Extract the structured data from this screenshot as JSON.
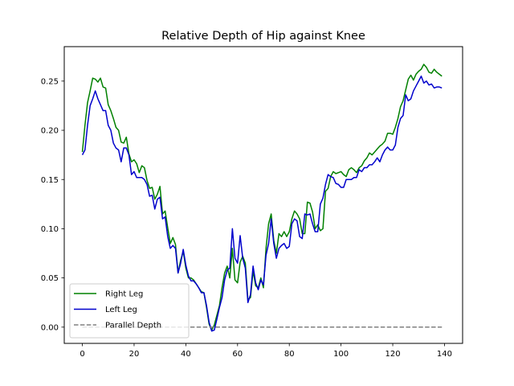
{
  "chart_data": {
    "type": "line",
    "title": "Relative Depth of Hip against Knee",
    "xlabel": "",
    "ylabel": "",
    "xlim": [
      -7,
      147
    ],
    "ylim": [
      -0.0165,
      0.285
    ],
    "x_ticks": [
      0,
      20,
      40,
      60,
      80,
      100,
      120,
      140
    ],
    "y_ticks": [
      0.0,
      0.05,
      0.1,
      0.15,
      0.2,
      0.25
    ],
    "x_tick_labels": [
      "0",
      "20",
      "40",
      "60",
      "80",
      "100",
      "120",
      "140"
    ],
    "y_tick_labels": [
      "0.00",
      "0.05",
      "0.10",
      "0.15",
      "0.20",
      "0.25"
    ],
    "grid": false,
    "legend_position": "lower-left",
    "colors": {
      "right": "#008000",
      "left": "#0000cc",
      "parallel": "#808080"
    },
    "series": [
      {
        "name": "Right Leg",
        "color": "#008000",
        "dash": "solid",
        "x": [
          0,
          1,
          2,
          3,
          4,
          5,
          6,
          7,
          8,
          9,
          10,
          11,
          12,
          13,
          14,
          15,
          16,
          17,
          18,
          19,
          20,
          21,
          22,
          23,
          24,
          25,
          26,
          27,
          28,
          29,
          30,
          31,
          32,
          33,
          34,
          35,
          36,
          37,
          38,
          39,
          40,
          41,
          42,
          43,
          44,
          45,
          46,
          47,
          48,
          49,
          50,
          51,
          52,
          53,
          54,
          55,
          56,
          57,
          58,
          59,
          60,
          61,
          62,
          63,
          64,
          65,
          66,
          67,
          68,
          69,
          70,
          71,
          72,
          73,
          74,
          75,
          76,
          77,
          78,
          79,
          80,
          81,
          82,
          83,
          84,
          85,
          86,
          87,
          88,
          89,
          90,
          91,
          92,
          93,
          94,
          95,
          96,
          97,
          98,
          99,
          100,
          101,
          102,
          103,
          104,
          105,
          106,
          107,
          108,
          109,
          110,
          111,
          112,
          113,
          114,
          115,
          116,
          117,
          118,
          119,
          120,
          121,
          122,
          123,
          124,
          125,
          126,
          127,
          128,
          129,
          130,
          131,
          132,
          133,
          134,
          135,
          136,
          137,
          138,
          139
        ],
        "values": [
          0.178,
          0.205,
          0.228,
          0.24,
          0.253,
          0.252,
          0.249,
          0.253,
          0.244,
          0.243,
          0.226,
          0.22,
          0.212,
          0.203,
          0.2,
          0.188,
          0.187,
          0.193,
          0.176,
          0.168,
          0.17,
          0.166,
          0.157,
          0.164,
          0.162,
          0.149,
          0.141,
          0.142,
          0.13,
          0.135,
          0.143,
          0.115,
          0.118,
          0.101,
          0.085,
          0.091,
          0.084,
          0.055,
          0.068,
          0.077,
          0.06,
          0.05,
          0.05,
          0.048,
          0.044,
          0.04,
          0.036,
          0.035,
          0.02,
          0.003,
          -0.003,
          0.002,
          0.012,
          0.022,
          0.04,
          0.055,
          0.062,
          0.05,
          0.08,
          0.048,
          0.045,
          0.066,
          0.072,
          0.065,
          0.028,
          0.03,
          0.057,
          0.042,
          0.04,
          0.05,
          0.04,
          0.08,
          0.105,
          0.115,
          0.088,
          0.075,
          0.095,
          0.092,
          0.097,
          0.092,
          0.097,
          0.11,
          0.118,
          0.115,
          0.11,
          0.095,
          0.095,
          0.127,
          0.126,
          0.117,
          0.1,
          0.104,
          0.098,
          0.1,
          0.138,
          0.141,
          0.153,
          0.158,
          0.156,
          0.157,
          0.158,
          0.155,
          0.153,
          0.16,
          0.162,
          0.16,
          0.157,
          0.162,
          0.164,
          0.169,
          0.172,
          0.177,
          0.175,
          0.178,
          0.181,
          0.184,
          0.186,
          0.189,
          0.197,
          0.197,
          0.196,
          0.203,
          0.212,
          0.224,
          0.23,
          0.241,
          0.252,
          0.256,
          0.251,
          0.257,
          0.26,
          0.262,
          0.267,
          0.264,
          0.259,
          0.258,
          0.262,
          0.259,
          0.257,
          0.255
        ]
      },
      {
        "name": "Left Leg",
        "color": "#0000cc",
        "dash": "solid",
        "x": [
          0,
          1,
          2,
          3,
          4,
          5,
          6,
          7,
          8,
          9,
          10,
          11,
          12,
          13,
          14,
          15,
          16,
          17,
          18,
          19,
          20,
          21,
          22,
          23,
          24,
          25,
          26,
          27,
          28,
          29,
          30,
          31,
          32,
          33,
          34,
          35,
          36,
          37,
          38,
          39,
          40,
          41,
          42,
          43,
          44,
          45,
          46,
          47,
          48,
          49,
          50,
          51,
          52,
          53,
          54,
          55,
          56,
          57,
          58,
          59,
          60,
          61,
          62,
          63,
          64,
          65,
          66,
          67,
          68,
          69,
          70,
          71,
          72,
          73,
          74,
          75,
          76,
          77,
          78,
          79,
          80,
          81,
          82,
          83,
          84,
          85,
          86,
          87,
          88,
          89,
          90,
          91,
          92,
          93,
          94,
          95,
          96,
          97,
          98,
          99,
          100,
          101,
          102,
          103,
          104,
          105,
          106,
          107,
          108,
          109,
          110,
          111,
          112,
          113,
          114,
          115,
          116,
          117,
          118,
          119,
          120,
          121,
          122,
          123,
          124,
          125,
          126,
          127,
          128,
          129,
          130,
          131,
          132,
          133,
          134,
          135,
          136,
          137,
          138,
          139
        ],
        "values": [
          0.175,
          0.18,
          0.205,
          0.225,
          0.232,
          0.24,
          0.232,
          0.226,
          0.22,
          0.22,
          0.205,
          0.2,
          0.187,
          0.182,
          0.18,
          0.168,
          0.182,
          0.182,
          0.175,
          0.155,
          0.158,
          0.152,
          0.152,
          0.152,
          0.15,
          0.145,
          0.133,
          0.134,
          0.12,
          0.13,
          0.132,
          0.11,
          0.112,
          0.092,
          0.08,
          0.083,
          0.08,
          0.055,
          0.065,
          0.079,
          0.063,
          0.052,
          0.047,
          0.047,
          0.044,
          0.04,
          0.035,
          0.035,
          0.022,
          0.005,
          -0.004,
          -0.003,
          0.008,
          0.02,
          0.03,
          0.048,
          0.058,
          0.06,
          0.1,
          0.07,
          0.065,
          0.093,
          0.07,
          0.06,
          0.025,
          0.033,
          0.062,
          0.045,
          0.038,
          0.048,
          0.043,
          0.073,
          0.085,
          0.11,
          0.085,
          0.07,
          0.08,
          0.083,
          0.085,
          0.08,
          0.082,
          0.105,
          0.11,
          0.108,
          0.092,
          0.09,
          0.115,
          0.114,
          0.115,
          0.105,
          0.097,
          0.097,
          0.125,
          0.131,
          0.145,
          0.155,
          0.153,
          0.152,
          0.146,
          0.145,
          0.142,
          0.142,
          0.15,
          0.15,
          0.15,
          0.152,
          0.152,
          0.16,
          0.158,
          0.162,
          0.162,
          0.165,
          0.165,
          0.168,
          0.172,
          0.168,
          0.175,
          0.18,
          0.183,
          0.18,
          0.18,
          0.185,
          0.203,
          0.212,
          0.215,
          0.236,
          0.23,
          0.232,
          0.24,
          0.245,
          0.25,
          0.255,
          0.248,
          0.25,
          0.246,
          0.247,
          0.243,
          0.244,
          0.244,
          0.243
        ]
      },
      {
        "name": "Parallel Depth",
        "color": "#808080",
        "dash": "dashed",
        "x": [
          0,
          139
        ],
        "values": [
          0,
          0
        ]
      }
    ]
  }
}
